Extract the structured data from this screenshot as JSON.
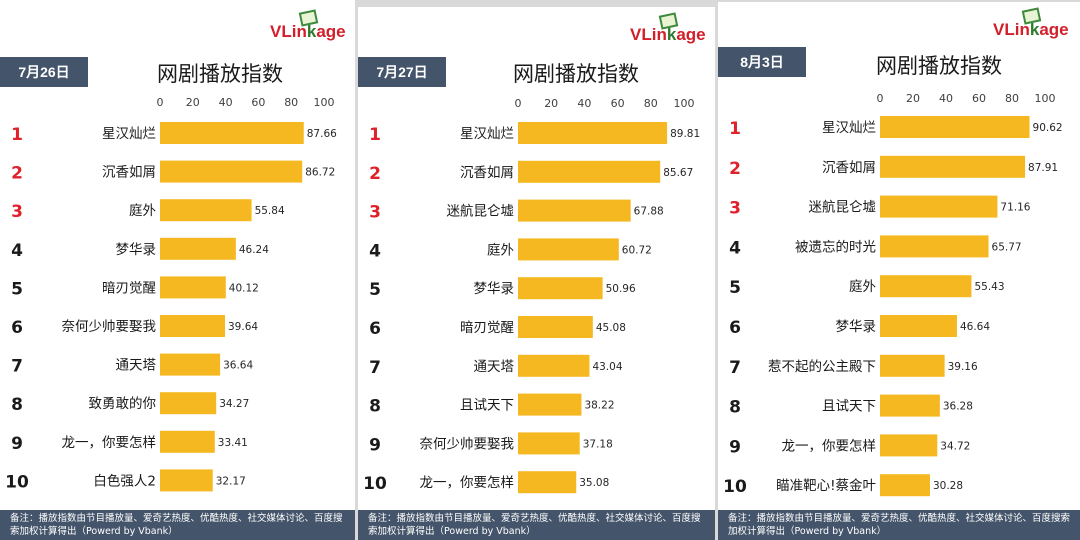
{
  "colors": {
    "bar": "#f5b820",
    "rank_top3": "#e0202a",
    "rank_other": "#1a1a1a",
    "header_bg": "#44546a"
  },
  "logo": {
    "prefix": "VLin",
    "k": "k",
    "suffix": "age"
  },
  "footer_text": "备注：播放指数由节目播放量、爱奇艺热度、优酷热度、社交媒体讨论、百度搜索加权计算得出（Powerd by Vbank）",
  "chart_data": [
    {
      "type": "bar",
      "orientation": "horizontal",
      "date": "7月26日",
      "title": "网剧播放指数",
      "xlim": [
        0,
        100
      ],
      "ticks": [
        0,
        20,
        40,
        60,
        80,
        100
      ],
      "ranks": [
        "1",
        "2",
        "3",
        "4",
        "5",
        "6",
        "7",
        "8",
        "9",
        "10"
      ],
      "categories": [
        "星汉灿烂",
        "沉香如屑",
        "庭外",
        "梦华录",
        "暗刃觉醒",
        "奈何少帅要娶我",
        "通天塔",
        "致勇敢的你",
        "龙一，你要怎样",
        "白色强人2"
      ],
      "values": [
        87.66,
        86.72,
        55.84,
        46.24,
        40.12,
        39.64,
        36.64,
        34.27,
        33.41,
        32.17
      ],
      "labels": [
        "87.66",
        "86.72",
        "55.84",
        "46.24",
        "40.12",
        "39.64",
        "36.64",
        "34.27",
        "33.41",
        "32.17"
      ]
    },
    {
      "type": "bar",
      "orientation": "horizontal",
      "date": "7月27日",
      "title": "网剧播放指数",
      "xlim": [
        0,
        100
      ],
      "ticks": [
        0,
        20,
        40,
        60,
        80,
        100
      ],
      "ranks": [
        "1",
        "2",
        "3",
        "4",
        "5",
        "6",
        "7",
        "8",
        "9",
        "10"
      ],
      "categories": [
        "星汉灿烂",
        "沉香如屑",
        "迷航昆仑墟",
        "庭外",
        "梦华录",
        "暗刃觉醒",
        "通天塔",
        "且试天下",
        "奈何少帅要娶我",
        "龙一，你要怎样"
      ],
      "values": [
        89.81,
        85.67,
        67.88,
        60.72,
        50.96,
        45.08,
        43.04,
        38.22,
        37.18,
        35.08
      ],
      "labels": [
        "89.81",
        "85.67",
        "67.88",
        "60.72",
        "50.96",
        "45.08",
        "43.04",
        "38.22",
        "37.18",
        "35.08"
      ]
    },
    {
      "type": "bar",
      "orientation": "horizontal",
      "date": "8月3日",
      "title": "网剧播放指数",
      "xlim": [
        0,
        100
      ],
      "ticks": [
        0,
        20,
        40,
        60,
        80,
        100
      ],
      "ranks": [
        "1",
        "2",
        "3",
        "4",
        "5",
        "6",
        "7",
        "8",
        "9",
        "10"
      ],
      "categories": [
        "星汉灿烂",
        "沉香如屑",
        "迷航昆仑墟",
        "被遗忘的时光",
        "庭外",
        "梦华录",
        "惹不起的公主殿下",
        "且试天下",
        "龙一，你要怎样",
        "瞄准靶心!蔡金叶"
      ],
      "values": [
        90.62,
        87.91,
        71.16,
        65.77,
        55.43,
        46.64,
        39.16,
        36.28,
        34.72,
        30.28
      ],
      "labels": [
        "90.62",
        "87.91",
        "71.16",
        "65.77",
        "55.43",
        "46.64",
        "39.16",
        "36.28",
        "34.72",
        "30.28"
      ]
    }
  ]
}
